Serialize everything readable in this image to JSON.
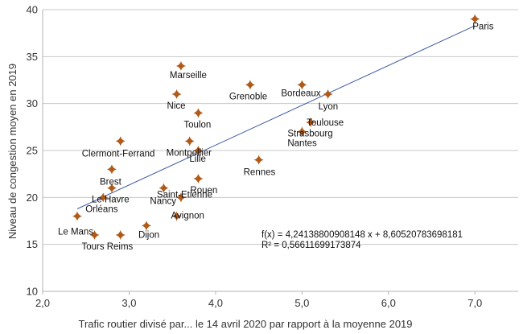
{
  "chart_data": {
    "type": "scatter",
    "title": "",
    "xlabel": "Trafic routier divisé par... le 14 avril 2020 par rapport à la moyenne 2019",
    "ylabel": "Niveau de congestion moyen en 2019",
    "xlim": [
      2.0,
      7.5
    ],
    "ylim": [
      10,
      40
    ],
    "x_ticks": [
      "2,0",
      "3,0",
      "4,0",
      "5,0",
      "6,0",
      "7,0"
    ],
    "y_ticks": [
      "10",
      "15",
      "20",
      "25",
      "30",
      "35",
      "40"
    ],
    "grid": "horizontal",
    "marker_color": "#b05a1a",
    "line_color": "#3b5aa0",
    "points": [
      {
        "label": "Paris",
        "x": 7.0,
        "y": 39
      },
      {
        "label": "Marseille",
        "x": 3.6,
        "y": 34
      },
      {
        "label": "Nice",
        "x": 3.55,
        "y": 31
      },
      {
        "label": "Grenoble",
        "x": 4.4,
        "y": 32
      },
      {
        "label": "Bordeaux",
        "x": 5.0,
        "y": 32
      },
      {
        "label": "Lyon",
        "x": 5.3,
        "y": 31
      },
      {
        "label": "Toulon",
        "x": 3.8,
        "y": 29
      },
      {
        "label": "Toulouse",
        "x": 5.1,
        "y": 28
      },
      {
        "label": "Strasbourg",
        "x": 5.0,
        "y": 27
      },
      {
        "label": "Nantes",
        "x": 5.0,
        "y": 27
      },
      {
        "label": "Clermont-Ferrand",
        "x": 2.9,
        "y": 26
      },
      {
        "label": "Montpellier",
        "x": 3.7,
        "y": 26
      },
      {
        "label": "Lille",
        "x": 3.8,
        "y": 25
      },
      {
        "label": "Rennes",
        "x": 4.5,
        "y": 24
      },
      {
        "label": "Brest",
        "x": 2.8,
        "y": 23
      },
      {
        "label": "Rouen",
        "x": 3.8,
        "y": 22
      },
      {
        "label": "Le Havre",
        "x": 2.8,
        "y": 21
      },
      {
        "label": "Nancy",
        "x": 3.4,
        "y": 21
      },
      {
        "label": "Orléans",
        "x": 2.7,
        "y": 20
      },
      {
        "label": "Saint-Etienne",
        "x": 3.6,
        "y": 20
      },
      {
        "label": "Le Mans",
        "x": 2.4,
        "y": 18
      },
      {
        "label": "Avignon",
        "x": 3.55,
        "y": 18
      },
      {
        "label": "Dijon",
        "x": 3.2,
        "y": 17
      },
      {
        "label": "Tours",
        "x": 2.6,
        "y": 16
      },
      {
        "label": "Reims",
        "x": 2.9,
        "y": 16
      }
    ],
    "trendline": {
      "slope": 4.24138800908148,
      "intercept": 8.60520783698181,
      "x_range": [
        2.4,
        7.0
      ],
      "equation": "f(x) = 4,24138800908148 x + 8,60520783698181",
      "r_squared": "R² = 0,56611699173874"
    }
  }
}
